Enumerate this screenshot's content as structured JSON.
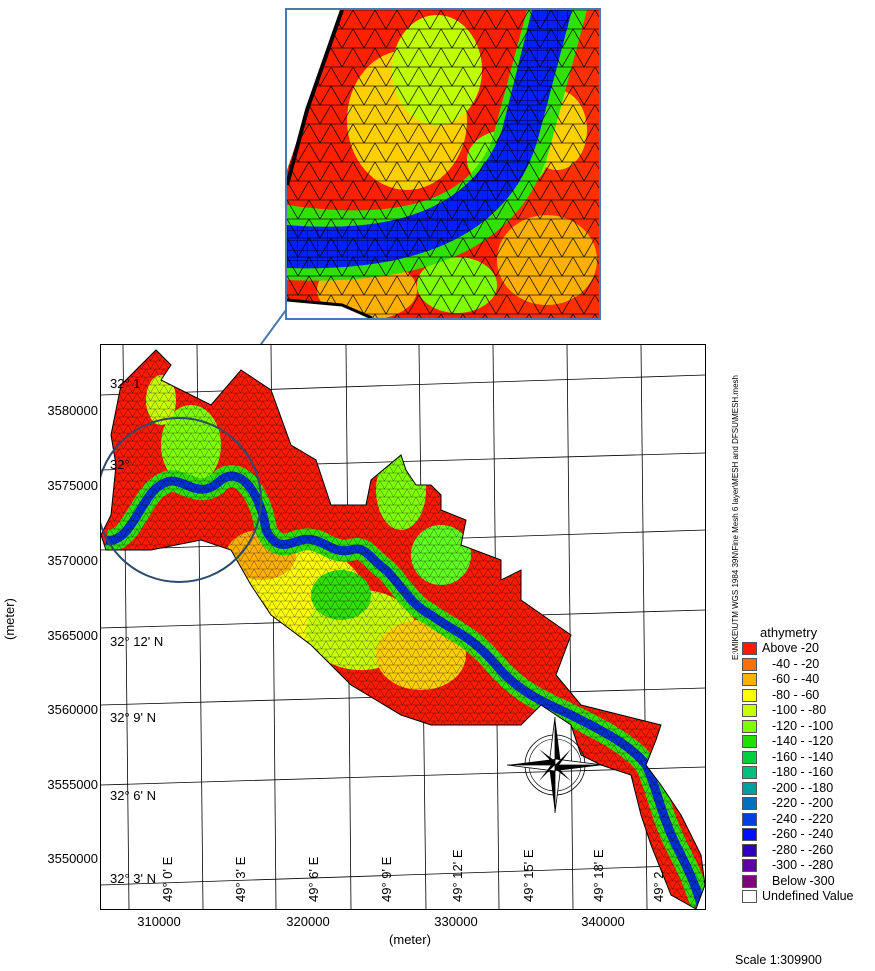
{
  "map": {
    "y_axis_title": "(meter)",
    "x_axis_title": "(meter)",
    "scale_label": "Scale 1:309900",
    "file_path": "E:\\MIKE\\UTM WGS 1984 39N\\Fine Mesh 6 layer\\MESH and DFSU\\MESH.mesh",
    "y_ticks": [
      "3580000",
      "3575000",
      "3570000",
      "3565000",
      "3560000",
      "3555000",
      "3550000"
    ],
    "x_ticks": [
      "310000",
      "320000",
      "330000",
      "340000"
    ],
    "lat_labels": [
      "32° 1",
      "32°",
      "32° 12' N",
      "32° 9' N",
      "32° 6' N",
      "32° 3' N"
    ],
    "lon_labels": [
      "49° 0' E",
      "49° 3' E",
      "49° 6' E",
      "49° 9' E",
      "49° 12' E",
      "49° 15' E",
      "49° 18' E",
      "49° 2"
    ]
  },
  "legend": {
    "title": "athymetry",
    "items": [
      {
        "label": "Above  -20",
        "color": "#ff1a00"
      },
      {
        "label": "-40 -  -20",
        "color": "#ff7000"
      },
      {
        "label": "-60 -  -40",
        "color": "#ffb000"
      },
      {
        "label": "-80 -  -60",
        "color": "#ffff00"
      },
      {
        "label": "-100 -  -80",
        "color": "#c8ff00"
      },
      {
        "label": "-120 - -100",
        "color": "#80ff00"
      },
      {
        "label": "-140 - -120",
        "color": "#20e000"
      },
      {
        "label": "-160 - -140",
        "color": "#00d040"
      },
      {
        "label": "-180 - -160",
        "color": "#00c080"
      },
      {
        "label": "-200 - -180",
        "color": "#00a0a0"
      },
      {
        "label": "-220 - -200",
        "color": "#0070c0"
      },
      {
        "label": "-240 - -220",
        "color": "#0040e0"
      },
      {
        "label": "-260 - -240",
        "color": "#0010ff"
      },
      {
        "label": "-280 - -260",
        "color": "#3000c0"
      },
      {
        "label": "-300 - -280",
        "color": "#6000a0"
      },
      {
        "label": "Below -300",
        "color": "#800080"
      },
      {
        "label": "Undefined Value",
        "color": "#ffffff"
      }
    ]
  }
}
